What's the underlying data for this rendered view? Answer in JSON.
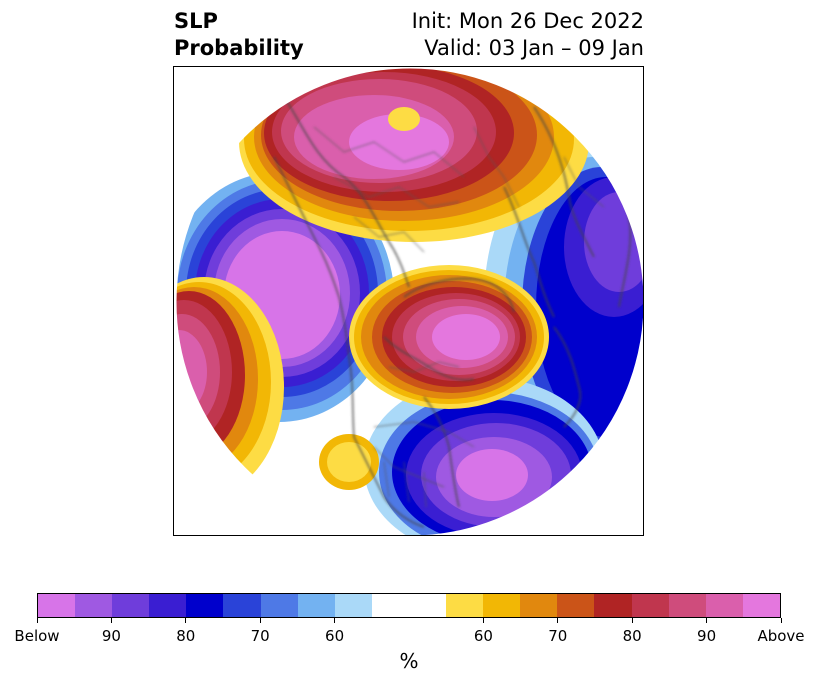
{
  "header": {
    "title": "SLP\nProbability",
    "init_valid": "Init: Mon 26 Dec 2022\nValid: 03 Jan – 09 Jan"
  },
  "map": {
    "projection": "north-polar-stereographic",
    "features": [
      "coastlines",
      "country-borders",
      "us-state-borders"
    ]
  },
  "colorbar": {
    "unit": "%",
    "below_colors": [
      "#d774e8",
      "#9f59e2",
      "#6f3ddb",
      "#3a1ed2",
      "#0000cc",
      "#2a43d8",
      "#4e79e6",
      "#73b2f1",
      "#aad9f8"
    ],
    "neutral_color": "#ffffff",
    "above_colors": [
      "#fddc44",
      "#f2b705",
      "#e1880e",
      "#cb5418",
      "#b02424",
      "#c0364e",
      "#cf4c7c",
      "#da5fac",
      "#e477de"
    ],
    "tick_labels": [
      "Below",
      "90",
      "80",
      "70",
      "60",
      "60",
      "70",
      "80",
      "90",
      "Above"
    ]
  }
}
